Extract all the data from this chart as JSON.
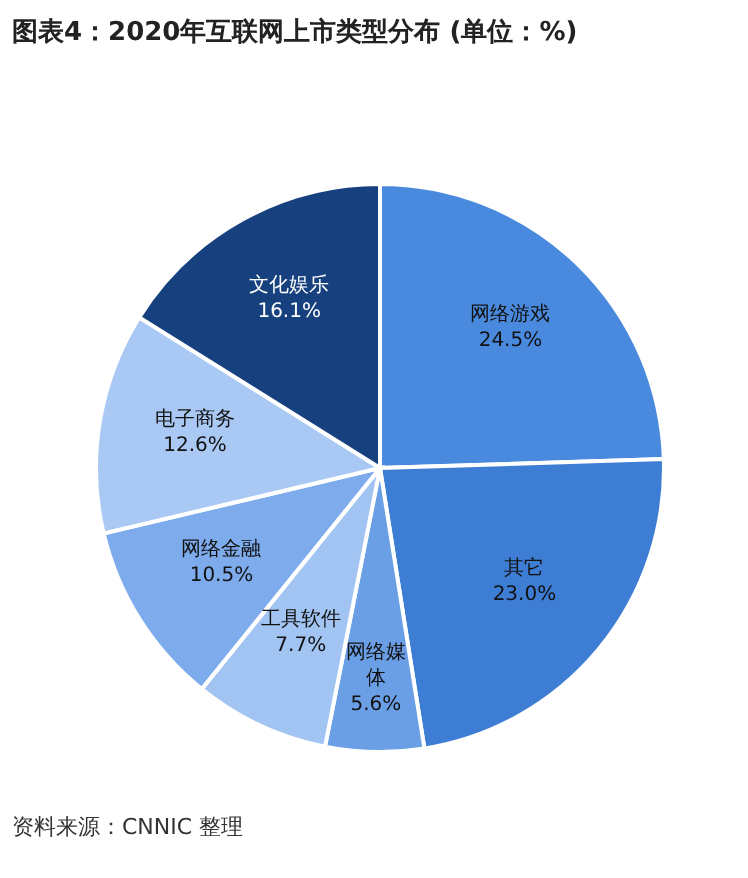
{
  "chart_data": {
    "type": "pie",
    "title": "图表4：2020年互联网上市类型分布 (单位：%)",
    "categories": [
      "网络游戏",
      "其它",
      "网络媒体",
      "工具软件",
      "网络金融",
      "电子商务",
      "文化娱乐"
    ],
    "values": [
      24.5,
      23.0,
      5.6,
      7.7,
      10.5,
      12.6,
      16.1
    ],
    "value_labels": [
      "24.5%",
      "23.0%",
      "5.6%",
      "7.7%",
      "10.5%",
      "12.6%",
      "16.1%"
    ],
    "colors": [
      "#4a8ade",
      "#3e7dd4",
      "#6a9fe6",
      "#a2c4f2",
      "#7eabeb",
      "#a9c9f4",
      "#17407e"
    ],
    "annotations": [
      "资料来源：CNNIC 整理"
    ]
  }
}
